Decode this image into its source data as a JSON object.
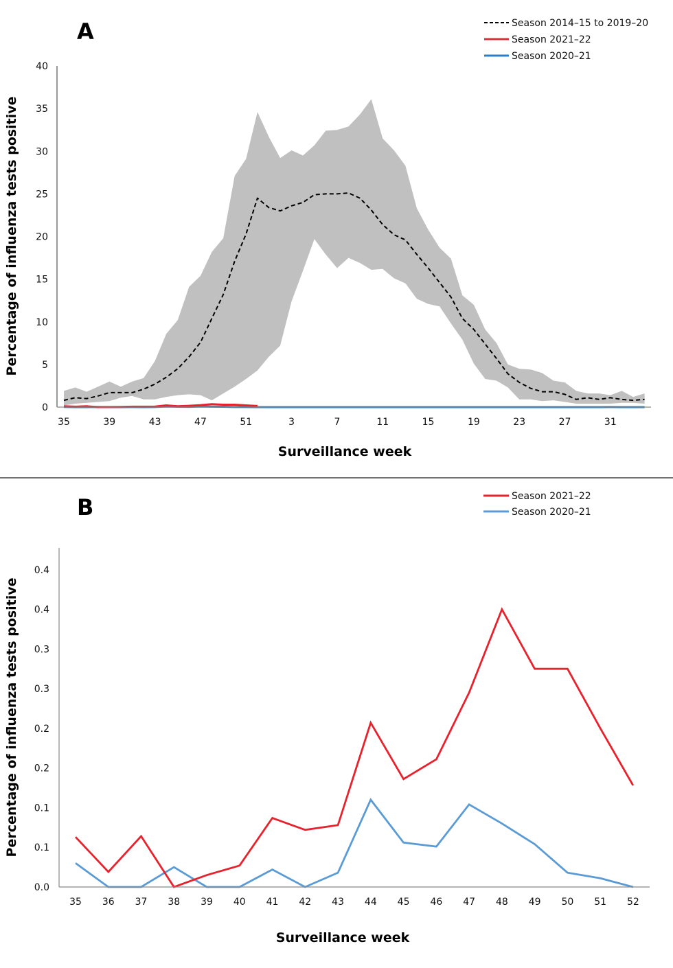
{
  "chart_data": [
    {
      "id": "A",
      "type": "line",
      "panel_label": "A",
      "title": "",
      "xlabel": "Surveillance week",
      "ylabel": "Percentage of influenza tests positive",
      "ylim": [
        0,
        40
      ],
      "yticks": [
        0,
        5,
        10,
        15,
        20,
        25,
        30,
        35,
        40
      ],
      "x": [
        35,
        36,
        37,
        38,
        39,
        40,
        41,
        42,
        43,
        44,
        45,
        46,
        47,
        48,
        49,
        50,
        51,
        52,
        1,
        2,
        3,
        4,
        5,
        6,
        7,
        8,
        9,
        10,
        11,
        12,
        13,
        14,
        15,
        16,
        17,
        18,
        19,
        20,
        21,
        22,
        23,
        24,
        25,
        26,
        27,
        28,
        29,
        30,
        31,
        32,
        33,
        34
      ],
      "xtick_labels": [
        "35",
        "39",
        "43",
        "47",
        "51",
        "3",
        "7",
        "11",
        "15",
        "19",
        "23",
        "27",
        "31"
      ],
      "grid": false,
      "legend_position": "top-right",
      "band": {
        "name": "Range season 2014–15 to 2019–20",
        "color": "#c0c0c0",
        "upper": [
          1.9,
          2.3,
          1.8,
          2.4,
          3.0,
          2.4,
          3.0,
          3.4,
          5.4,
          8.6,
          10.2,
          14.1,
          15.4,
          18.2,
          19.8,
          27.1,
          29.1,
          34.6,
          31.7,
          29.2,
          30.1,
          29.5,
          30.7,
          32.4,
          32.5,
          32.9,
          34.3,
          36.1,
          31.5,
          30.1,
          28.3,
          23.3,
          20.8,
          18.7,
          17.4,
          13.1,
          12.0,
          9.1,
          7.5,
          5.0,
          4.5,
          4.4,
          4.0,
          3.1,
          2.9,
          1.9,
          1.6,
          1.6,
          1.4,
          1.9,
          1.2,
          1.6
        ],
        "lower": [
          0.2,
          0.4,
          0.5,
          0.6,
          0.7,
          1.1,
          1.3,
          0.9,
          0.9,
          1.2,
          1.4,
          1.5,
          1.4,
          0.8,
          1.6,
          2.4,
          3.3,
          4.3,
          5.9,
          7.2,
          12.4,
          16.0,
          19.7,
          17.9,
          16.3,
          17.5,
          16.9,
          16.1,
          16.2,
          15.1,
          14.5,
          12.7,
          12.1,
          11.8,
          9.8,
          7.9,
          5.1,
          3.3,
          3.1,
          2.3,
          0.9,
          0.9,
          0.7,
          0.8,
          0.6,
          0.4,
          0.4,
          0.4,
          0.4,
          0.5,
          0.5,
          0.4
        ]
      },
      "series": [
        {
          "name": "Season 2014–15 to 2019–20",
          "style": "dashed",
          "color": "#000000",
          "values": [
            0.8,
            1.1,
            1.0,
            1.3,
            1.7,
            1.7,
            1.7,
            2.1,
            2.7,
            3.5,
            4.5,
            5.9,
            7.6,
            10.4,
            13.2,
            17.1,
            20.3,
            24.5,
            23.4,
            23.0,
            23.6,
            24.0,
            24.9,
            25.0,
            25.0,
            25.1,
            24.5,
            23.1,
            21.4,
            20.2,
            19.6,
            17.9,
            16.3,
            14.6,
            12.9,
            10.4,
            9.1,
            7.4,
            5.7,
            3.9,
            2.9,
            2.2,
            1.8,
            1.8,
            1.5,
            0.9,
            1.1,
            0.9,
            1.1,
            0.9,
            0.8,
            0.9
          ]
        },
        {
          "name": "Season 2021–22",
          "style": "solid",
          "color": "#e8222d",
          "values": [
            0.1,
            0.05,
            0.1,
            0.0,
            0.01,
            0.02,
            0.05,
            0.05,
            0.06,
            0.2,
            0.1,
            0.15,
            0.23,
            0.35,
            0.28,
            0.28,
            0.2,
            0.13
          ]
        },
        {
          "name": "Season 2020–21",
          "style": "solid",
          "color": "#2a7ec6",
          "values": [
            0.02,
            0,
            0,
            0.02,
            0,
            0,
            0.01,
            0,
            0.01,
            0.07,
            0.04,
            0.03,
            0.07,
            0.05,
            0.04,
            0.01,
            0.01,
            0,
            0,
            0,
            0,
            0,
            0,
            0,
            0,
            0,
            0,
            0,
            0,
            0,
            0,
            0,
            0,
            0,
            0,
            0,
            0,
            0,
            0,
            0,
            0,
            0,
            0,
            0,
            0,
            0,
            0,
            0,
            0.01,
            0,
            0,
            0
          ]
        }
      ]
    },
    {
      "id": "B",
      "type": "line",
      "panel_label": "B",
      "title": "",
      "xlabel": "Surveillance week",
      "ylabel": "Percentage of influenza tests positive",
      "ylim": [
        0,
        0.45
      ],
      "yticks": [
        0.0,
        0.05,
        0.1,
        0.15,
        0.2,
        0.25,
        0.3,
        0.35,
        0.4
      ],
      "ytick_labels": [
        "0.0",
        "0.1",
        "0.1",
        "0.2",
        "0.2",
        "0.3",
        "0.3",
        "0.4",
        "0.4"
      ],
      "x": [
        35,
        36,
        37,
        38,
        39,
        40,
        41,
        42,
        43,
        44,
        45,
        46,
        47,
        48,
        49,
        50,
        51,
        52
      ],
      "xtick_labels": [
        "35",
        "36",
        "37",
        "38",
        "39",
        "40",
        "41",
        "42",
        "43",
        "44",
        "45",
        "46",
        "47",
        "48",
        "49",
        "50",
        "51",
        "52"
      ],
      "grid": false,
      "legend_position": "top-right",
      "series": [
        {
          "name": "Season 2021–22",
          "color": "#e8222d",
          "values": [
            0.063,
            0.019,
            0.064,
            0.0,
            0.015,
            0.027,
            0.087,
            0.072,
            0.078,
            0.207,
            0.136,
            0.161,
            0.245,
            0.35,
            0.275,
            0.275,
            0.2,
            0.128
          ]
        },
        {
          "name": "Season 2020–21",
          "color": "#5b9bd5",
          "values": [
            0.03,
            0.0,
            0.0,
            0.025,
            0.0,
            0.0,
            0.022,
            0.0,
            0.018,
            0.11,
            0.056,
            0.051,
            0.104,
            0.08,
            0.054,
            0.018,
            0.011,
            0.0
          ]
        }
      ]
    }
  ]
}
